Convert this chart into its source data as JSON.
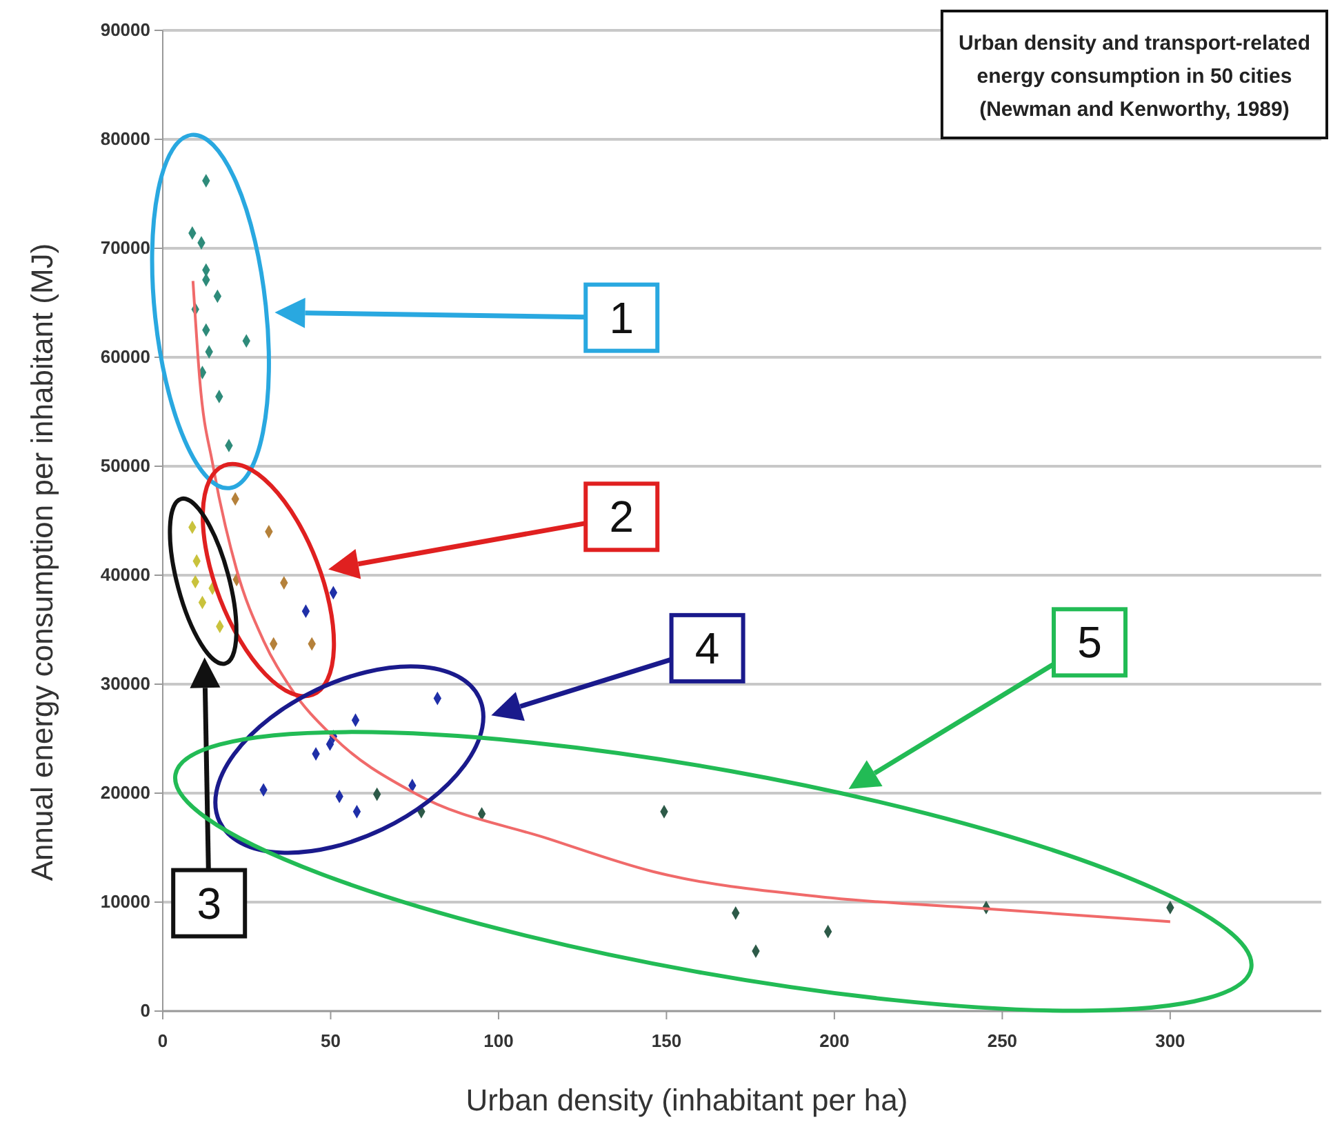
{
  "chart_data": {
    "type": "scatter",
    "title": "Urban density  and transport-related\nenergy consumption  in 50 cities\n(Newman and Kenworthy, 1989)",
    "xlabel": "Urban density (inhabitant per ha)",
    "ylabel": "Annual energy consumption per inhabitant (MJ)",
    "xlim": [
      0,
      345
    ],
    "ylim": [
      0,
      90000
    ],
    "xticks": [
      0,
      50,
      100,
      150,
      200,
      250,
      300
    ],
    "yticks": [
      0,
      10000,
      20000,
      30000,
      40000,
      50000,
      60000,
      70000,
      80000,
      90000
    ],
    "grid": "y",
    "marker": "diamond",
    "annotations": [
      "1",
      "2",
      "3",
      "4",
      "5"
    ],
    "series": [
      {
        "color": "#2e8b7a",
        "x": [
          12.9,
          8.8,
          11.5,
          12.9,
          12.9,
          16.3,
          9.7,
          12.9,
          24.9,
          13.8,
          11.8,
          16.8,
          19.7
        ],
        "values": [
          76200,
          71400,
          70500,
          68000,
          67100,
          65600,
          64400,
          62500,
          61500,
          60500,
          58600,
          56400,
          51900
        ]
      },
      {
        "color": "#b5813a",
        "x": [
          21.6,
          31.6,
          22,
          36.1,
          33,
          44.4
        ],
        "values": [
          47000,
          44000,
          39600,
          39300,
          33700,
          33700
        ]
      },
      {
        "color": "#c9c23c",
        "x": [
          8.8,
          10.1,
          9.7,
          14.8,
          11.8,
          17
        ],
        "values": [
          44400,
          41300,
          39400,
          38800,
          37500,
          35300
        ]
      },
      {
        "color": "#1f2fa8",
        "x": [
          81.8,
          57.4,
          50.8,
          49.8,
          45.6,
          30,
          52.6,
          57.8,
          74.3
        ],
        "values": [
          28700,
          26700,
          25200,
          24500,
          23600,
          20300,
          19700,
          18300,
          20700
        ]
      },
      {
        "color": "#2d5a48",
        "x": [
          63.8,
          77,
          95,
          149.3,
          170.6,
          176.6,
          198.1,
          245.2,
          300
        ],
        "values": [
          19900,
          18300,
          18100,
          18300,
          9000,
          5500,
          7300,
          9500,
          9500
        ]
      },
      {
        "color": "#1f2fa8",
        "x": [
          50.8,
          42.6
        ],
        "values": [
          38400,
          36700
        ]
      },
      {
        "type": "line",
        "marker": "none",
        "color": "#f06a6a",
        "x": [
          9,
          11,
          15,
          22,
          30,
          38,
          51,
          75,
          115,
          146,
          199,
          245,
          300
        ],
        "values": [
          67000,
          58000,
          50000,
          40500,
          34000,
          29700,
          25100,
          20000,
          15800,
          12800,
          10400,
          9400,
          8200
        ]
      }
    ]
  }
}
